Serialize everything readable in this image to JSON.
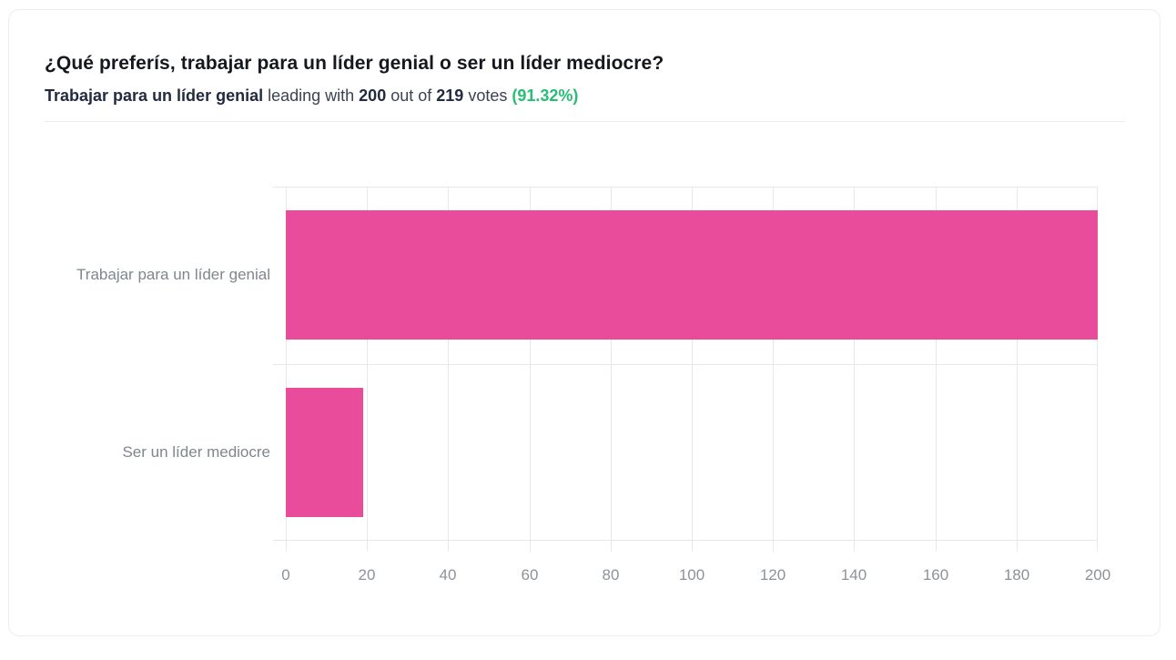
{
  "header": {
    "title": "¿Qué preferís, trabajar para un líder genial o ser un líder mediocre?",
    "summary": {
      "option": "Trabajar para un líder genial",
      "leading_with": " leading with ",
      "votes_leading": "200",
      "out_of": " out of ",
      "votes_total": "219",
      "votes_word": " votes ",
      "percent": "(91.32%)"
    }
  },
  "chart_data": {
    "type": "bar",
    "orientation": "horizontal",
    "title": "",
    "xlabel": "",
    "ylabel": "",
    "categories": [
      "Trabajar para un líder genial",
      "Ser un líder mediocre"
    ],
    "values": [
      200,
      19
    ],
    "xlim": [
      0,
      200
    ],
    "xticks": [
      0,
      20,
      40,
      60,
      80,
      100,
      120,
      140,
      160,
      180,
      200
    ],
    "grid": true,
    "legend_position": "none",
    "bar_color": "#ea4c9c"
  },
  "colors": {
    "bar_pink": "#ea4c9c",
    "percent_green": "#29bd74",
    "title_text": "#16181d",
    "summary_bold_text": "#222b40",
    "axis_text": "#8d9298",
    "grid_line": "#e7e8ea",
    "card_border": "#ecedef"
  }
}
